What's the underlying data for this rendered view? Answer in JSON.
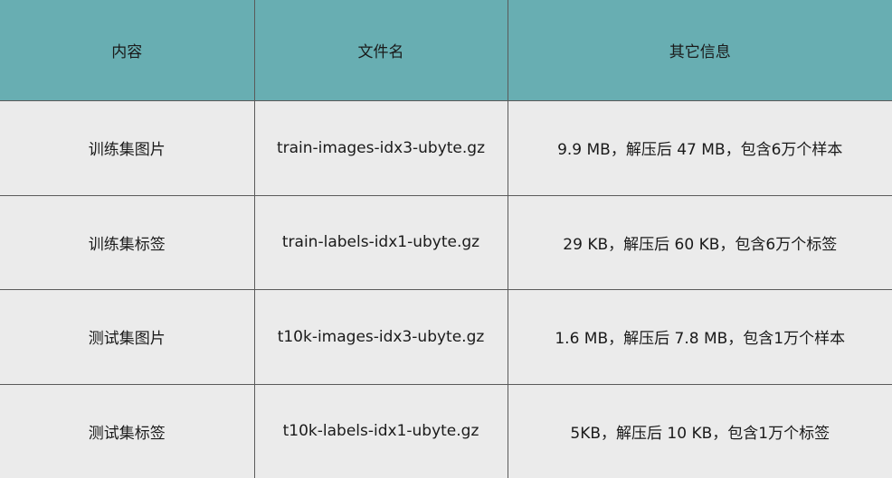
{
  "table": {
    "headers": [
      "内容",
      "文件名",
      "其它信息"
    ],
    "rows": [
      [
        "训练集图片",
        "train-images-idx3-ubyte.gz",
        "9.9 MB，解压后 47 MB，包含6万个样本"
      ],
      [
        "训练集标签",
        "train-labels-idx1-ubyte.gz",
        "29 KB，解压后 60 KB，包含6万个标签"
      ],
      [
        "测试集图片",
        "t10k-images-idx3-ubyte.gz",
        "1.6 MB，解压后 7.8 MB，包含1万个样本"
      ],
      [
        "测试集标签",
        "t10k-labels-idx1-ubyte.gz",
        "5KB，解压后 10 KB，包含1万个标签"
      ]
    ]
  },
  "colors": {
    "header_bg": "#68aeb2",
    "row_bg": "#ebebeb",
    "border": "#5a5a5a"
  }
}
